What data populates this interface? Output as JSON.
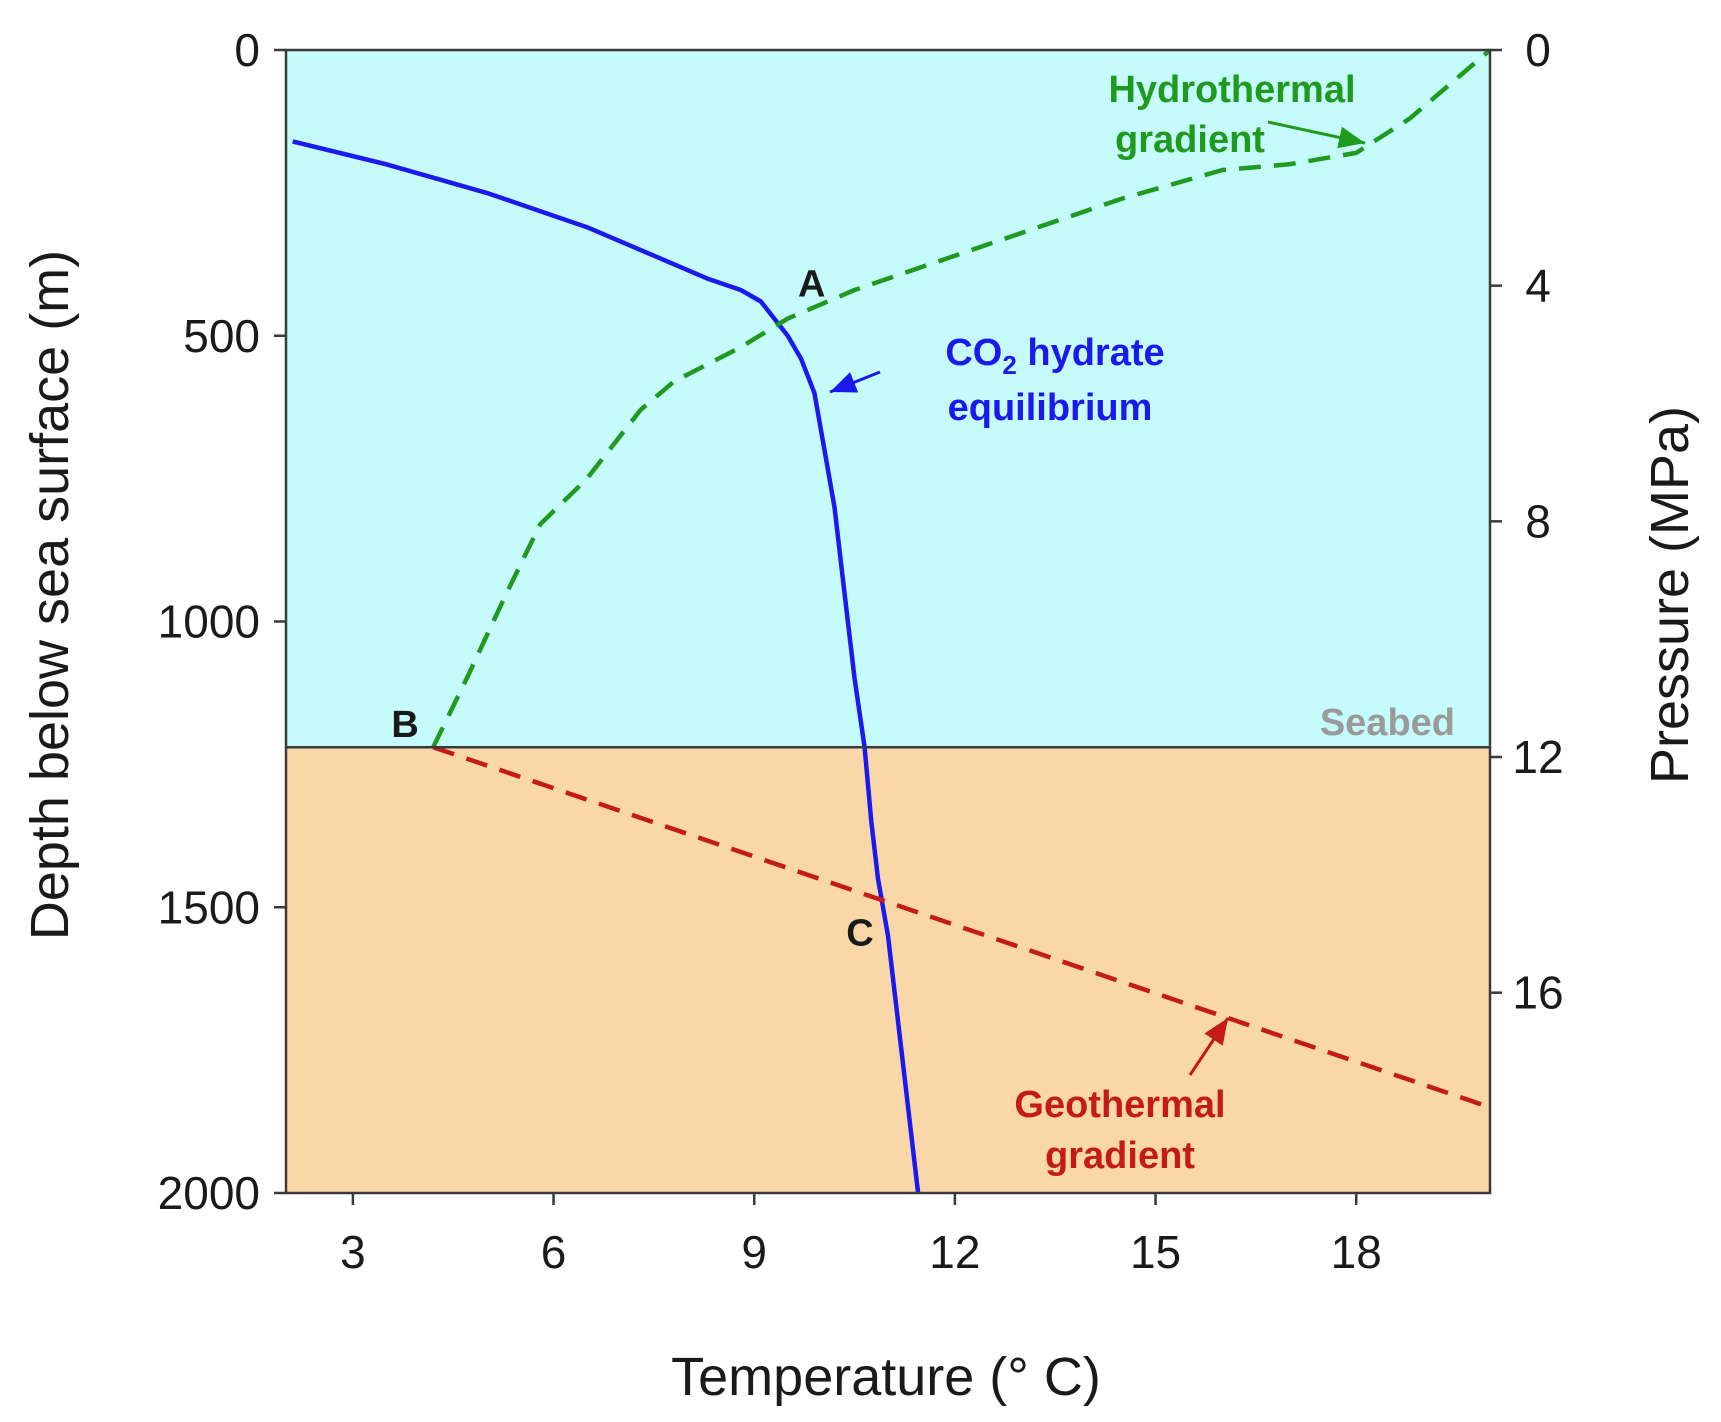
{
  "chart_data": {
    "type": "line",
    "xlabel": "Temperature (° C)",
    "ylabel": "Depth below sea surface (m)",
    "y2label": "Pressure (MPa)",
    "xlim": [
      2,
      20
    ],
    "ylim": [
      0,
      2000
    ],
    "y_inverted": true,
    "x_ticks": [
      3,
      6,
      9,
      12,
      15,
      18
    ],
    "y_ticks": [
      0,
      500,
      1000,
      1500,
      2000
    ],
    "y2lim": [
      0,
      19.4
    ],
    "y2_ticks": [
      0,
      4,
      8,
      12,
      16
    ],
    "grid": false,
    "regions": [
      {
        "label": "",
        "from_depth": 0,
        "to_depth": 1220,
        "color": "#c6fbfb"
      },
      {
        "label": "Seabed",
        "at_depth": 1220,
        "color": "#fad7a8"
      }
    ],
    "seabed_label": "Seabed",
    "series": [
      {
        "name": "CO₂ hydrate equilibrium",
        "label_main": "CO",
        "label_sub": "2",
        "label_rest": " hydrate",
        "label_line2": "equilibrium",
        "color": "#1a1aee",
        "style": "solid",
        "x": [
          2.1,
          3.5,
          5.0,
          6.5,
          7.5,
          8.3,
          8.8,
          9.1,
          9.3,
          9.5,
          9.7,
          9.9,
          10.05,
          10.2,
          10.35,
          10.5,
          10.65,
          10.75,
          10.85,
          11.0,
          11.2,
          11.45
        ],
        "y": [
          160,
          200,
          250,
          310,
          360,
          400,
          420,
          440,
          470,
          500,
          540,
          600,
          700,
          800,
          950,
          1100,
          1220,
          1350,
          1450,
          1550,
          1750,
          2000
        ]
      },
      {
        "name": "Hydrothermal gradient",
        "label_line1": "Hydrothermal",
        "label_line2": "gradient",
        "color": "#1f9a1f",
        "style": "dashed",
        "x": [
          4.2,
          4.7,
          5.3,
          5.8,
          6.5,
          7.3,
          7.8,
          8.8,
          9.5,
          10.5,
          12.5,
          14.5,
          16.0,
          17.0,
          18.0,
          18.8,
          19.5,
          20.0
        ],
        "y": [
          1220,
          1100,
          950,
          830,
          750,
          630,
          580,
          520,
          470,
          420,
          340,
          260,
          210,
          200,
          180,
          120,
          50,
          0
        ]
      },
      {
        "name": "Geothermal gradient",
        "label_line1": "Geothermal",
        "label_line2": "gradient",
        "color": "#c41a1a",
        "style": "dashed",
        "x": [
          4.2,
          20.0
        ],
        "y": [
          1220,
          1850
        ]
      }
    ],
    "points": [
      {
        "label": "A",
        "x": 9.5,
        "y": 470
      },
      {
        "label": "B",
        "x": 4.2,
        "y": 1220
      },
      {
        "label": "C",
        "x": 11.0,
        "y": 1500
      }
    ]
  }
}
